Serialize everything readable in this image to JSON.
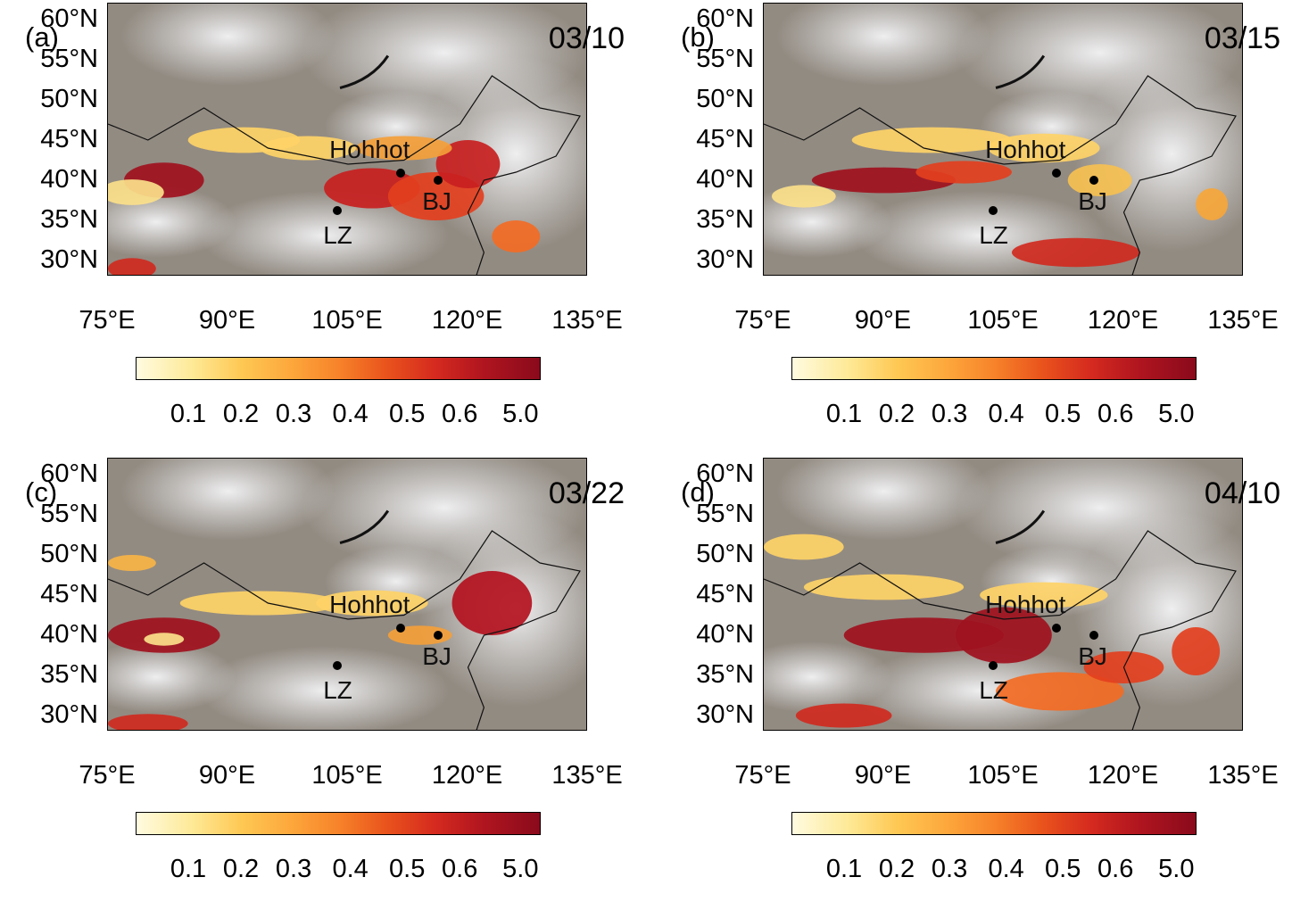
{
  "panels": [
    {
      "label": "(a)",
      "date": "03/10"
    },
    {
      "label": "(b)",
      "date": "03/15"
    },
    {
      "label": "(c)",
      "date": "03/22"
    },
    {
      "label": "(d)",
      "date": "04/10"
    }
  ],
  "lat_ticks": [
    "60°N",
    "55°N",
    "50°N",
    "45°N",
    "40°N",
    "35°N",
    "30°N"
  ],
  "lon_ticks": [
    "75°E",
    "90°E",
    "105°E",
    "120°E",
    "135°E"
  ],
  "sites": [
    {
      "name": "Hohhot",
      "lon": 111.7,
      "lat": 40.8
    },
    {
      "name": "BJ",
      "lon": 116.4,
      "lat": 39.9
    },
    {
      "name": "LZ",
      "lon": 103.8,
      "lat": 36.1
    }
  ],
  "colorbar": {
    "ticks": [
      "0.1",
      "0.2",
      "0.3",
      "0.4",
      "0.5",
      "0.6",
      "5.0"
    ],
    "colors": [
      "#fffbe0",
      "#fee996",
      "#fec853",
      "#fda83c",
      "#f7832a",
      "#e9531c",
      "#d52a1f",
      "#b0151f",
      "#8a0a1c"
    ]
  },
  "map_extent": {
    "lon": [
      75,
      135
    ],
    "lat": [
      28,
      62
    ]
  }
}
